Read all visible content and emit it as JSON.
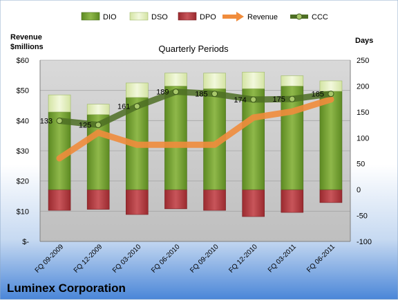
{
  "chart_data": {
    "type": "bar",
    "title": "Quarterly Periods",
    "company": "Luminex Corporation",
    "left_axis_label_line1": "Revenue",
    "left_axis_label_line2": "$millions",
    "right_axis_label": "Days",
    "categories": [
      "FQ 09-2009",
      "FQ 12-2009",
      "FQ 03-2010",
      "FQ 06-2010",
      "FQ 09-2010",
      "FQ 12-2010",
      "FQ 03-2011",
      "FQ 06-2011"
    ],
    "left_ylim": [
      0,
      60
    ],
    "left_ticks": [
      0,
      10,
      20,
      30,
      40,
      50,
      60
    ],
    "left_tick_labels": [
      "$-",
      "$10",
      "$20",
      "$30",
      "$40",
      "$50",
      "$60"
    ],
    "right_ylim": [
      -100,
      250
    ],
    "right_ticks": [
      -100,
      -50,
      0,
      50,
      100,
      150,
      200,
      250
    ],
    "legend_position": "top",
    "series": [
      {
        "name": "DIO",
        "axis": "right",
        "kind": "stacked-bar",
        "color": "#6f9a2e",
        "values": [
          150,
          145,
          178,
          200,
          195,
          195,
          200,
          190
        ]
      },
      {
        "name": "DSO",
        "axis": "right",
        "kind": "stacked-bar",
        "color": "#e6f0c6",
        "values": [
          33,
          20,
          28,
          25,
          30,
          32,
          20,
          20
        ]
      },
      {
        "name": "DPO",
        "axis": "right",
        "kind": "bar-below-zero",
        "color": "#b5383d",
        "values": [
          -40,
          -38,
          -48,
          -37,
          -40,
          -52,
          -44,
          -25
        ]
      },
      {
        "name": "Revenue",
        "axis": "left",
        "kind": "line",
        "color": "#f08c3c",
        "values": [
          27.5,
          36,
          32,
          32,
          32,
          41,
          43,
          47
        ]
      },
      {
        "name": "CCC",
        "axis": "right",
        "kind": "line-markers",
        "color": "#4d6e24",
        "values": [
          133,
          125,
          161,
          189,
          185,
          174,
          175,
          185
        ]
      }
    ],
    "ccc_labels": [
      "133",
      "125",
      "161",
      "189",
      "185",
      "174",
      "175",
      "185"
    ],
    "colors": {
      "background_top": "#ffffff",
      "background_bottom": "#4a86d8",
      "plot_area": "#c8c8c8"
    }
  }
}
